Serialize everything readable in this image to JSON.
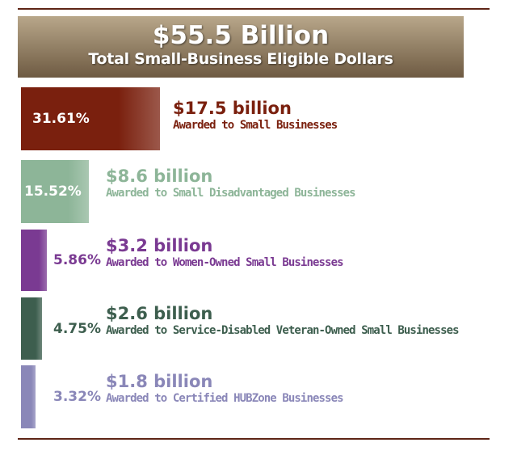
{
  "colors": {
    "rule": "#5e2516",
    "header_light": "#b8a78a",
    "header_dark": "#6e5a42"
  },
  "header": {
    "title": "$55.5 Billion",
    "subtitle": "Total Small-Business Eligible Dollars"
  },
  "chart_data": {
    "type": "bar",
    "orientation": "horizontal",
    "total_label": "$55.5 Billion",
    "categories": [
      "Awarded to Small Businesses",
      "Awarded to Small Disadvantaged Businesses",
      "Awarded to Women-Owned Small Businesses",
      "Awarded to Service-Disabled Veteran-Owned Small Businesses",
      "Awarded to Certified HUBZone Businesses"
    ],
    "values": [
      31.61,
      15.52,
      5.86,
      4.75,
      3.32
    ],
    "percent_labels": [
      "31.61%",
      "15.52%",
      "5.86%",
      "4.75%",
      "3.32%"
    ],
    "amount_labels": [
      "$17.5 billion",
      "$8.6 billion",
      "$3.2 billion",
      "$2.6 billion",
      "$1.8 billion"
    ],
    "colors": [
      "#7a200e",
      "#8db598",
      "#7a3a92",
      "#3d5e4e",
      "#8a87b8"
    ],
    "text_colors": [
      "#7a200e",
      "#8db598",
      "#7a3a92",
      "#3d5e4e",
      "#8a87b8"
    ],
    "label_inside": [
      true,
      true,
      false,
      false,
      false
    ]
  }
}
